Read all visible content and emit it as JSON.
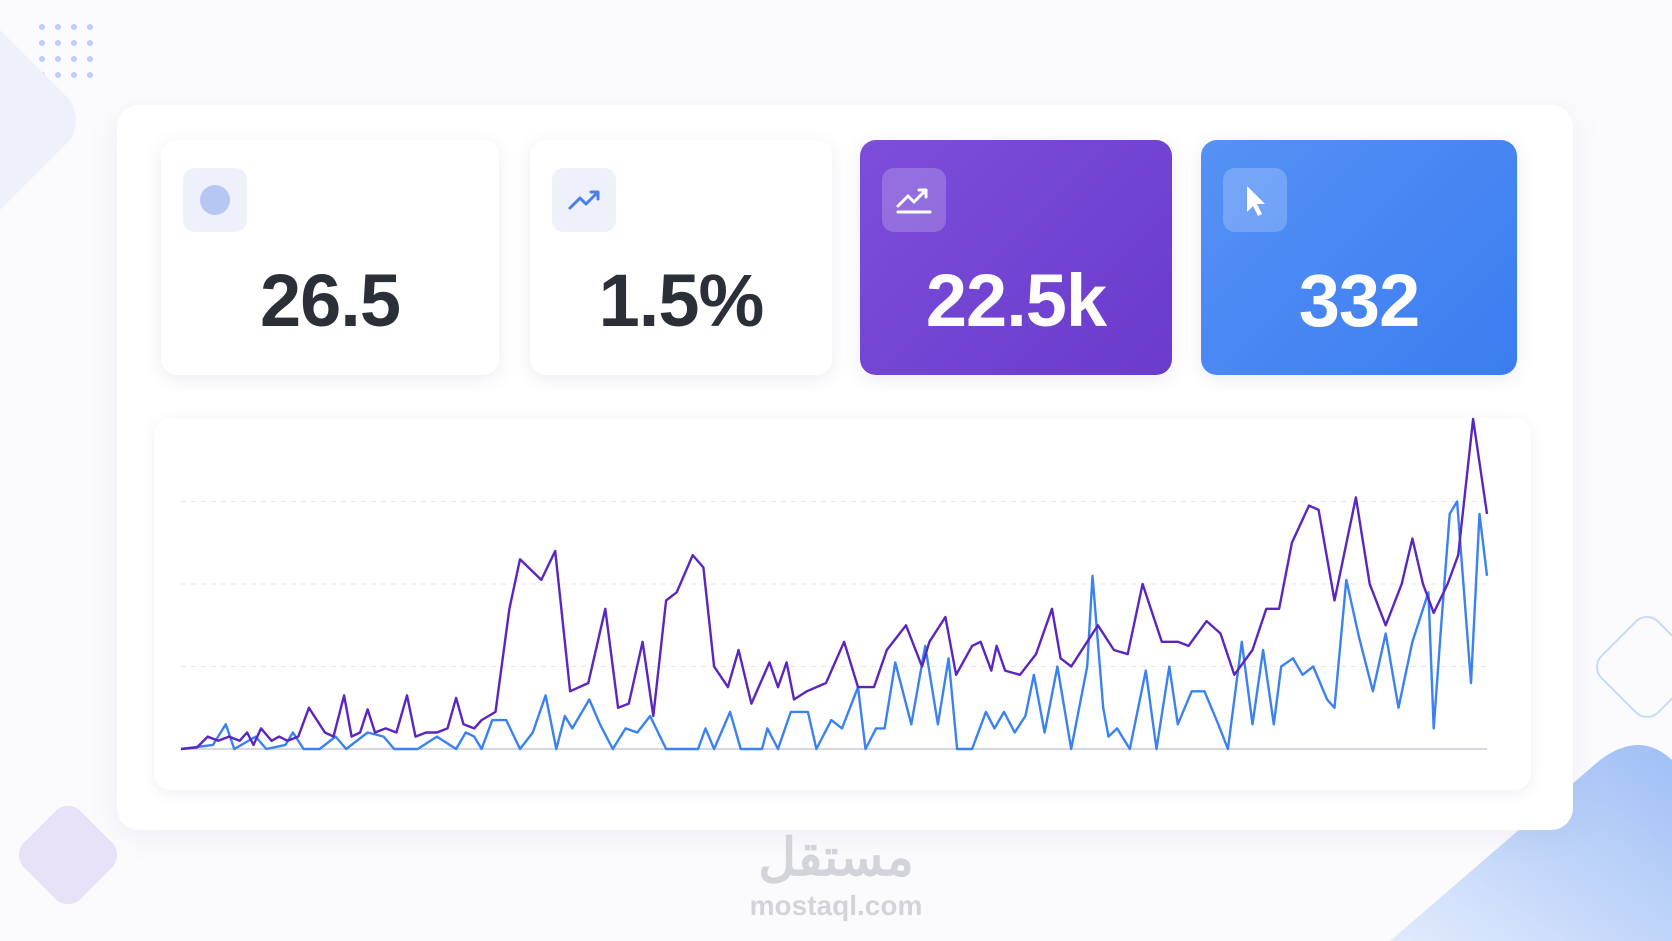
{
  "stats": [
    {
      "value": "26.5"
    },
    {
      "value": "1.5%"
    },
    {
      "value": "22.5k"
    },
    {
      "value": "332"
    }
  ],
  "chart_data": {
    "type": "line",
    "xlim": [
      0,
      1225
    ],
    "ylim": [
      0,
      4
    ],
    "gridlines": [
      0,
      1,
      2,
      3
    ],
    "series": [
      {
        "color": "#5b25c0",
        "x": [
          0,
          15,
          25,
          35,
          45,
          55,
          62,
          68,
          75,
          85,
          92,
          100,
          110,
          120,
          135,
          143,
          153,
          160,
          168,
          175,
          182,
          192,
          202,
          212,
          220,
          230,
          240,
          250,
          258,
          265,
          275,
          282,
          295,
          308,
          318,
          338,
          351,
          365,
          382,
          398,
          410,
          420,
          433,
          443,
          455,
          465,
          480,
          490,
          500,
          513,
          523,
          535,
          552,
          560,
          568,
          575,
          587,
          605,
          622,
          635,
          650,
          662,
          680,
          695,
          702,
          717,
          727,
          742,
          750,
          760,
          765,
          773,
          787,
          802,
          817,
          825,
          835,
          850,
          860,
          875,
          888,
          902,
          920,
          935,
          945,
          962,
          975,
          988,
          1005,
          1018,
          1030,
          1042,
          1058,
          1067,
          1082,
          1102,
          1115,
          1130,
          1145,
          1155,
          1165,
          1175,
          1188,
          1198,
          1212,
          1225
        ],
        "values": [
          0,
          0.02,
          0.15,
          0.1,
          0.15,
          0.1,
          0.2,
          0.05,
          0.25,
          0.1,
          0.15,
          0.1,
          0.15,
          0.5,
          0.2,
          0.15,
          0.65,
          0.15,
          0.2,
          0.48,
          0.2,
          0.25,
          0.2,
          0.65,
          0.15,
          0.2,
          0.2,
          0.25,
          0.62,
          0.3,
          0.25,
          0.35,
          0.45,
          1.7,
          2.3,
          2.05,
          2.4,
          0.7,
          0.8,
          1.7,
          0.5,
          0.55,
          1.3,
          0.4,
          1.8,
          1.9,
          2.35,
          2.2,
          1.0,
          0.75,
          1.2,
          0.55,
          1.05,
          0.75,
          1.05,
          0.6,
          0.7,
          0.8,
          1.3,
          0.75,
          0.75,
          1.2,
          1.5,
          1.0,
          1.3,
          1.6,
          0.9,
          1.25,
          1.3,
          0.95,
          1.25,
          0.95,
          0.9,
          1.15,
          1.7,
          1.1,
          1.0,
          1.3,
          1.5,
          1.2,
          1.15,
          2.0,
          1.3,
          1.3,
          1.25,
          1.55,
          1.4,
          0.9,
          1.2,
          1.7,
          1.7,
          2.5,
          2.95,
          2.9,
          1.8,
          3.05,
          2.0,
          1.5,
          2.0,
          2.55,
          2.0,
          1.65,
          2.0,
          2.35,
          4.0,
          2.85
        ]
      },
      {
        "color": "#3b82f0",
        "x": [
          0,
          30,
          42,
          50,
          70,
          80,
          98,
          105,
          115,
          130,
          145,
          155,
          175,
          190,
          200,
          222,
          240,
          258,
          267,
          275,
          282,
          292,
          305,
          318,
          330,
          342,
          352,
          360,
          367,
          383,
          393,
          405,
          417,
          428,
          440,
          455,
          485,
          492,
          500,
          515,
          525,
          545,
          550,
          560,
          572,
          588,
          596,
          610,
          620,
          635,
          642,
          652,
          660,
          670,
          685,
          698,
          710,
          720,
          728,
          742,
          755,
          763,
          772,
          782,
          792,
          800,
          810,
          822,
          835,
          850,
          855,
          865,
          870,
          878,
          890,
          905,
          915,
          927,
          935,
          948,
          960,
          973,
          982,
          995,
          1005,
          1015,
          1025,
          1032,
          1043,
          1052,
          1062,
          1075,
          1082,
          1093,
          1105,
          1118,
          1130,
          1142,
          1155,
          1170,
          1175,
          1182,
          1190,
          1197,
          1210,
          1218,
          1225
        ],
        "values": [
          0,
          0.05,
          0.3,
          0,
          0.15,
          0,
          0.05,
          0.2,
          0,
          0,
          0.15,
          0,
          0.2,
          0.15,
          0,
          0,
          0.15,
          0,
          0.2,
          0.15,
          0,
          0.35,
          0.35,
          0,
          0.2,
          0.65,
          0,
          0.4,
          0.25,
          0.6,
          0.3,
          0,
          0.25,
          0.2,
          0.4,
          0,
          0,
          0.25,
          0,
          0.45,
          0,
          0,
          0.25,
          0,
          0.45,
          0.45,
          0,
          0.35,
          0.25,
          0.75,
          0,
          0.25,
          0.25,
          1.05,
          0.3,
          1.25,
          0.3,
          1.1,
          0,
          0,
          0.45,
          0.25,
          0.45,
          0.2,
          0.4,
          0.9,
          0.2,
          1.0,
          0,
          1.0,
          2.1,
          0.5,
          0.15,
          0.25,
          0,
          0.95,
          0,
          1.0,
          0.3,
          0.7,
          0.7,
          0.3,
          0,
          1.3,
          0.3,
          1.2,
          0.3,
          1.0,
          1.1,
          0.9,
          1.0,
          0.6,
          0.5,
          2.05,
          1.35,
          0.7,
          1.4,
          0.5,
          1.3,
          1.9,
          0.25,
          1.5,
          2.85,
          3.0,
          0.8,
          2.85,
          2.1
        ]
      }
    ]
  },
  "watermark": {
    "arabic": "مستقل",
    "url": "mostaql.com"
  }
}
